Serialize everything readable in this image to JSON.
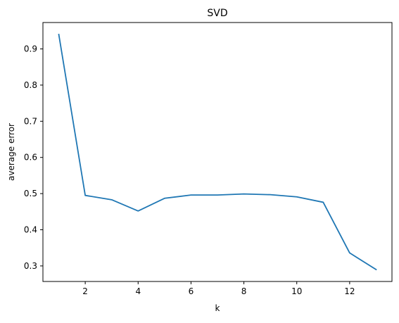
{
  "chart_data": {
    "type": "line",
    "title": "SVD",
    "xlabel": "k",
    "ylabel": "average error",
    "xlim": [
      0.4,
      13.6
    ],
    "ylim": [
      0.257,
      0.973
    ],
    "xticks": [
      2,
      4,
      6,
      8,
      10,
      12
    ],
    "yticks": [
      0.3,
      0.4,
      0.5,
      0.6,
      0.7,
      0.8,
      0.9
    ],
    "grid": false,
    "series": [
      {
        "color": "#1f77b4",
        "x": [
          1,
          2,
          3,
          4,
          5,
          6,
          7,
          8,
          9,
          10,
          11,
          12,
          13
        ],
        "y": [
          0.94,
          0.495,
          0.483,
          0.452,
          0.487,
          0.496,
          0.496,
          0.499,
          0.497,
          0.491,
          0.476,
          0.336,
          0.29
        ]
      }
    ]
  }
}
